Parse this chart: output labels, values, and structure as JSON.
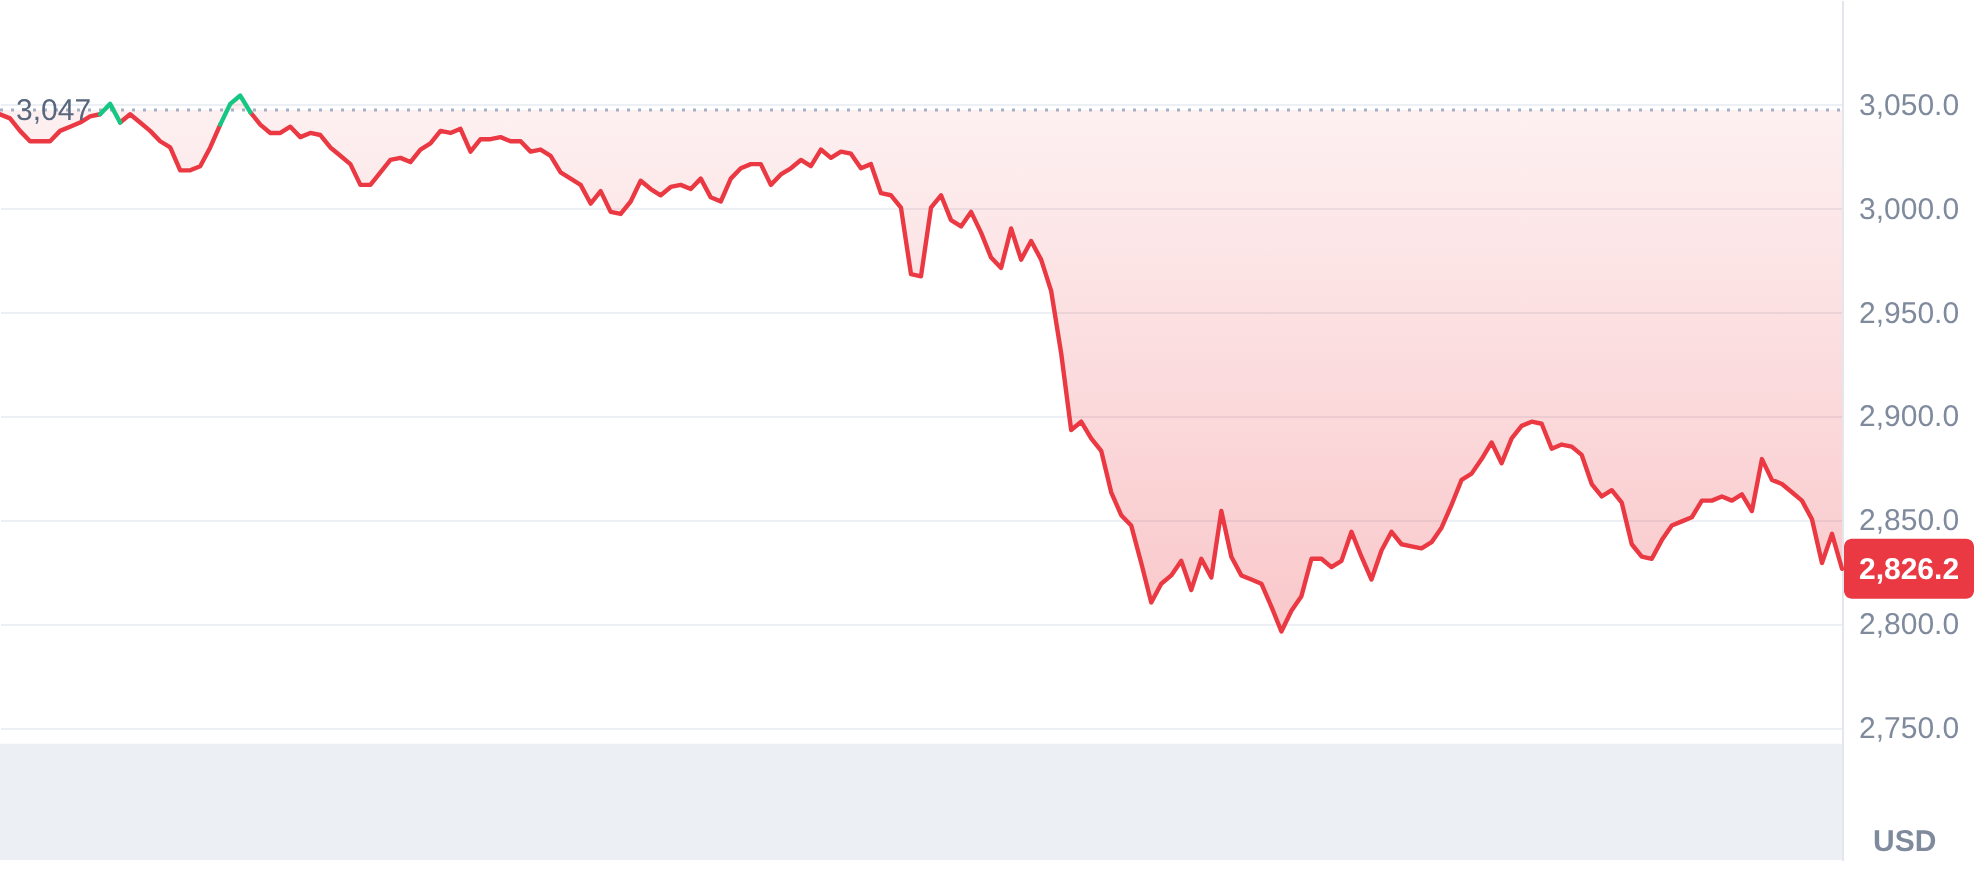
{
  "chart_data": {
    "type": "line",
    "categories": [
      null,
      null,
      null,
      null,
      null,
      null,
      null,
      null,
      null,
      null,
      null,
      null,
      null,
      null,
      null,
      null,
      null,
      null,
      null,
      null,
      null,
      null,
      null,
      null,
      null,
      null,
      null,
      null,
      null,
      null,
      null,
      null,
      null,
      null,
      null,
      null,
      null,
      null,
      null,
      null,
      null,
      null,
      null,
      null,
      null,
      null,
      null,
      null,
      null,
      null,
      null,
      null,
      null,
      null,
      null,
      null,
      null,
      null,
      null,
      null,
      null,
      null,
      null,
      null,
      null,
      null,
      null,
      null,
      null,
      null,
      null,
      null,
      null,
      null,
      null,
      null,
      null,
      null,
      null,
      null,
      null,
      null,
      null,
      null,
      null,
      null,
      null,
      null,
      null,
      null,
      null,
      null,
      null,
      null,
      null,
      null,
      null,
      null,
      null,
      null,
      null,
      null,
      null,
      null,
      null,
      null,
      null,
      null,
      null,
      null,
      null,
      null,
      null,
      null,
      null,
      null,
      null,
      null,
      null,
      null,
      null,
      null,
      null,
      null,
      null,
      null,
      null,
      null,
      null,
      null,
      null,
      null,
      null,
      null,
      null,
      null,
      null,
      null,
      null,
      null,
      null,
      null,
      null,
      null,
      null,
      null,
      null,
      null,
      null,
      null,
      null,
      null,
      null,
      null,
      null,
      null,
      null,
      null,
      null,
      null,
      null,
      null,
      null,
      null,
      null,
      null,
      null,
      null,
      null,
      null,
      null,
      null,
      null,
      null,
      null,
      null,
      null,
      null,
      null,
      null,
      null,
      null,
      null,
      null,
      null
    ],
    "series": [
      {
        "color": "#ea3943",
        "values": [
          3045,
          3043,
          3037,
          3032,
          3032,
          3032,
          3037,
          3039,
          3041,
          3044,
          3045,
          null,
          3041,
          3045,
          3041,
          3037,
          3032,
          3029,
          3018,
          3018,
          3020,
          3029,
          3040,
          null,
          null,
          3046,
          3040,
          3036,
          3036,
          3039,
          3034,
          3036,
          3035,
          3029,
          3025,
          3021,
          3011,
          3011,
          3017,
          3023,
          3024,
          3022,
          3028,
          3031,
          3037,
          3036,
          3038,
          3027,
          3033,
          3033,
          3034,
          3032,
          3032,
          3027,
          3028,
          3025,
          3017,
          3014,
          3011,
          3002,
          3008,
          2998,
          2997,
          3003,
          3013,
          3009,
          3006,
          3010,
          3011,
          3009,
          3014,
          3005,
          3003,
          3014,
          3019,
          3021,
          3021,
          3011,
          3016,
          3019,
          3023,
          3020,
          3028,
          3024,
          3027,
          3026,
          3019,
          3021,
          3007,
          3006,
          3000,
          2968,
          2967,
          3000,
          3006,
          2994,
          2991,
          2998,
          2988,
          2976,
          2971,
          2990,
          2975,
          2984,
          2975,
          2960,
          2930,
          2893,
          2897,
          2889,
          2883,
          2863,
          2852,
          2847,
          2829,
          2810,
          2819,
          2823,
          2830,
          2816,
          2831,
          2822,
          2854,
          2832,
          2823,
          2821,
          2819,
          2808,
          2796,
          2806,
          2813,
          2831,
          2831,
          2827,
          2830,
          2844,
          2832,
          2821,
          2835,
          2844,
          2838,
          2837,
          2836,
          2839,
          2846,
          2857,
          2869,
          2872,
          2879,
          2887,
          2877,
          2889,
          2895,
          2897,
          2896,
          2884,
          2886,
          2885,
          2881,
          2867,
          2861,
          2864,
          2858,
          2838,
          2832,
          2831,
          2840,
          2847,
          2849,
          2851,
          2859,
          2859,
          2861,
          2859,
          2862,
          2854,
          2879,
          2869,
          2867,
          2863,
          2859,
          2850,
          2829,
          2843,
          2826.2
        ],
        "lower": [
          3045,
          3043,
          3037,
          3032,
          3032,
          3032,
          3037,
          3039,
          3041,
          3044,
          3045,
          3047,
          3041,
          3045,
          3041,
          3037,
          3032,
          3029,
          3018,
          3018,
          3020,
          3029,
          3040,
          3047,
          3047,
          3046,
          3040,
          3036,
          3036,
          3039,
          3034,
          3036,
          3035,
          3029,
          3025,
          3021,
          3011,
          3011,
          3017,
          3023,
          3024,
          3022,
          3028,
          3031,
          3037,
          3036,
          3038,
          3027,
          3033,
          3033,
          3034,
          3032,
          3032,
          3027,
          3028,
          3025,
          3017,
          3014,
          3011,
          3002,
          3008,
          2998,
          2997,
          3003,
          3013,
          3009,
          3006,
          3010,
          3011,
          3009,
          3014,
          3005,
          3003,
          3014,
          3019,
          3021,
          3021,
          3011,
          3016,
          3019,
          3023,
          3020,
          3028,
          3024,
          3027,
          3026,
          3019,
          3021,
          3007,
          3006,
          3000,
          2968,
          2967,
          3000,
          3006,
          2994,
          2991,
          2998,
          2988,
          2976,
          2971,
          2990,
          2975,
          2984,
          2975,
          2960,
          2930,
          2893,
          2897,
          2889,
          2883,
          2863,
          2852,
          2847,
          2829,
          2810,
          2819,
          2823,
          2830,
          2816,
          2831,
          2822,
          2854,
          2832,
          2823,
          2821,
          2819,
          2808,
          2796,
          2806,
          2813,
          2831,
          2831,
          2827,
          2830,
          2844,
          2832,
          2821,
          2835,
          2844,
          2838,
          2837,
          2836,
          2839,
          2846,
          2857,
          2869,
          2872,
          2879,
          2887,
          2877,
          2889,
          2895,
          2897,
          2896,
          2884,
          2886,
          2885,
          2881,
          2867,
          2861,
          2864,
          2858,
          2838,
          2832,
          2831,
          2840,
          2847,
          2849,
          2851,
          2859,
          2859,
          2861,
          2859,
          2862,
          2854,
          2879,
          2869,
          2867,
          2863,
          2859,
          2850,
          2829,
          2843,
          2826.2
        ],
        "upper": [
          3047,
          3047,
          3047,
          3047,
          3047,
          3047,
          3047,
          3047,
          3047,
          3047,
          3047,
          3050,
          3047,
          3047,
          3047,
          3047,
          3047,
          3047,
          3047,
          3047,
          3047,
          3047,
          3047,
          3050,
          3054,
          3047,
          3047,
          3047,
          3047,
          3047,
          3047,
          3047,
          3047,
          3047,
          3047,
          3047,
          3047,
          3047,
          3047,
          3047,
          3047,
          3047,
          3047,
          3047,
          3047,
          3047,
          3047,
          3047,
          3047,
          3047,
          3047,
          3047,
          3047,
          3047,
          3047,
          3047,
          3047,
          3047,
          3047,
          3047,
          3047,
          3047,
          3047,
          3047,
          3047,
          3047,
          3047,
          3047,
          3047,
          3047,
          3047,
          3047,
          3047,
          3047,
          3047,
          3047,
          3047,
          3047,
          3047,
          3047,
          3047,
          3047,
          3047,
          3047,
          3047,
          3047,
          3047,
          3047,
          3047,
          3047,
          3047,
          3047,
          3047,
          3047,
          3047,
          3047,
          3047,
          3047,
          3047,
          3047,
          3047,
          3047,
          3047,
          3047,
          3047,
          3047,
          3047,
          3047,
          3047,
          3047,
          3047,
          3047,
          3047,
          3047,
          3047,
          3047,
          3047,
          3047,
          3047,
          3047,
          3047,
          3047,
          3047,
          3047,
          3047,
          3047,
          3047,
          3047,
          3047,
          3047,
          3047,
          3047,
          3047,
          3047,
          3047,
          3047,
          3047,
          3047,
          3047,
          3047,
          3047,
          3047,
          3047,
          3047,
          3047,
          3047,
          3047,
          3047,
          3047,
          3047,
          3047,
          3047,
          3047,
          3047,
          3047,
          3047,
          3047,
          3047,
          3047,
          3047,
          3047,
          3047,
          3047,
          3047,
          3047,
          3047,
          3047,
          3047,
          3047,
          3047,
          3047,
          3047,
          3047,
          3047,
          3047,
          3047,
          3047,
          3047,
          3047,
          3047,
          3047,
          3047,
          3047,
          3047,
          3047
        ],
        "value_labels": [
          null,
          null,
          null,
          null,
          null,
          null,
          null,
          null,
          null,
          null,
          null,
          null,
          null,
          null,
          null,
          null,
          null,
          null,
          null,
          null,
          null,
          null,
          null,
          null,
          null,
          null,
          null,
          null,
          null,
          null,
          null,
          null,
          null,
          null,
          null,
          null,
          null,
          null,
          null,
          null,
          null,
          null,
          null,
          null,
          null,
          null,
          null,
          null,
          null,
          null,
          null,
          null,
          null,
          null,
          null,
          null,
          null,
          null,
          null,
          null,
          null,
          null,
          null,
          null,
          null,
          null,
          null,
          null,
          null,
          null,
          null,
          null,
          null,
          null,
          null,
          null,
          null,
          null,
          null,
          null,
          null,
          null,
          null,
          null,
          null,
          null,
          null,
          null,
          null,
          null,
          null,
          null,
          null,
          null,
          null,
          null,
          null,
          null,
          null,
          null,
          null,
          null,
          null,
          null,
          null,
          null,
          null,
          null,
          null,
          null,
          null,
          null,
          null,
          null,
          null,
          null,
          null,
          null,
          null,
          null,
          null,
          null,
          null,
          null,
          null,
          null,
          null,
          null,
          null,
          null,
          null,
          null,
          null,
          null,
          null,
          null,
          null,
          null,
          null,
          null,
          null,
          null,
          null,
          null,
          null,
          null,
          null,
          null,
          null,
          null,
          null,
          null,
          null,
          null,
          null,
          null,
          null,
          null,
          null,
          null,
          null,
          null,
          null,
          null,
          null,
          null,
          null,
          null,
          null,
          null,
          null,
          null,
          null,
          null,
          null,
          null,
          null,
          null,
          null,
          null,
          null,
          null,
          null,
          null,
          "2,826.2"
        ]
      },
      {
        "color": "#16c784",
        "values": [
          null,
          null,
          null,
          null,
          null,
          null,
          null,
          null,
          null,
          null,
          3045,
          3050,
          3041,
          null,
          null,
          null,
          null,
          null,
          null,
          null,
          null,
          null,
          3040,
          3050,
          3054,
          3046,
          null,
          null,
          null,
          null,
          null,
          null,
          null,
          null,
          null,
          null,
          null,
          null,
          null,
          null,
          null,
          null,
          null,
          null,
          null,
          null,
          null,
          null,
          null,
          null,
          null,
          null,
          null,
          null,
          null,
          null,
          null,
          null,
          null,
          null,
          null,
          null,
          null,
          null,
          null,
          null,
          null,
          null,
          null,
          null,
          null,
          null,
          null,
          null,
          null,
          null,
          null,
          null,
          null,
          null,
          null,
          null,
          null,
          null,
          null,
          null,
          null,
          null,
          null,
          null,
          null,
          null,
          null,
          null,
          null,
          null,
          null,
          null,
          null,
          null,
          null,
          null,
          null,
          null,
          null,
          null,
          null,
          null,
          null,
          null,
          null,
          null,
          null,
          null,
          null,
          null,
          null,
          null,
          null,
          null,
          null,
          null,
          null,
          null,
          null,
          null,
          null,
          null,
          null,
          null,
          null,
          null,
          null,
          null,
          null,
          null,
          null,
          null,
          null,
          null,
          null,
          null,
          null,
          null,
          null,
          null,
          null,
          null,
          null,
          null,
          null,
          null,
          null,
          null,
          null,
          null,
          null,
          null,
          null,
          null,
          null,
          null,
          null,
          null,
          null,
          null,
          null,
          null,
          null,
          null,
          null,
          null,
          null,
          null,
          null,
          null,
          null,
          null,
          null,
          null,
          null,
          null,
          null,
          null,
          null
        ]
      }
    ],
    "ylabel": "USD",
    "ylim": [
      2686,
      3100
    ],
    "yticks": [
      {
        "value": 2750,
        "label": "2,750.0"
      },
      {
        "value": 2800,
        "label": "2,800.0"
      },
      {
        "value": 2850,
        "label": "2,850.0"
      },
      {
        "value": 2900,
        "label": "2,900.0"
      },
      {
        "value": 2950,
        "label": "2,950.0"
      },
      {
        "value": 3000,
        "label": "3,000.0"
      },
      {
        "value": 3050,
        "label": "3,050.0"
      }
    ],
    "grid": "y",
    "ref_lines": [
      {
        "axis": "y",
        "value": 3047,
        "label": "3,047",
        "line_style": "dotted",
        "color": "#a6b0c3"
      }
    ],
    "bands": [
      {
        "axis": "y",
        "from": 2686,
        "to": 2742,
        "color": "#eceff3"
      }
    ]
  }
}
